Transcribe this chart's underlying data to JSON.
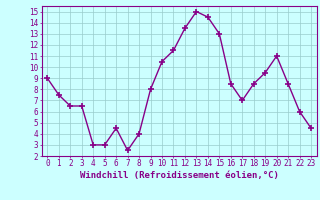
{
  "x": [
    0,
    1,
    2,
    3,
    4,
    5,
    6,
    7,
    8,
    9,
    10,
    11,
    12,
    13,
    14,
    15,
    16,
    17,
    18,
    19,
    20,
    21,
    22,
    23
  ],
  "y": [
    9,
    7.5,
    6.5,
    6.5,
    3,
    3,
    4.5,
    2.5,
    4,
    8,
    10.5,
    11.5,
    13.5,
    15,
    14.5,
    13,
    8.5,
    7,
    8.5,
    9.5,
    11,
    8.5,
    6,
    4.5
  ],
  "line_color": "#880088",
  "bg_color": "#ccffff",
  "grid_color": "#99cccc",
  "xlabel": "Windchill (Refroidissement éolien,°C)",
  "xlim": [
    -0.5,
    23.5
  ],
  "ylim": [
    2,
    15.5
  ],
  "yticks": [
    2,
    3,
    4,
    5,
    6,
    7,
    8,
    9,
    10,
    11,
    12,
    13,
    14,
    15
  ],
  "xticks": [
    0,
    1,
    2,
    3,
    4,
    5,
    6,
    7,
    8,
    9,
    10,
    11,
    12,
    13,
    14,
    15,
    16,
    17,
    18,
    19,
    20,
    21,
    22,
    23
  ],
  "xlabel_fontsize": 6.5,
  "tick_fontsize": 5.5,
  "marker_size": 4,
  "line_width": 1.0
}
